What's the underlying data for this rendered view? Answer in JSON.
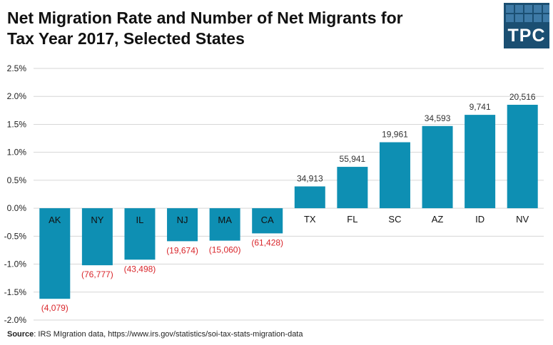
{
  "title_line1": "Net Migration Rate and Number of Net Migrants for",
  "title_line2": "Tax Year 2017, Selected States",
  "logo_text": "TPC",
  "source_label": "Source",
  "source_text": ": IRS MIgration data, https://www.irs.gov/statistics/soi-tax-stats-migration-data",
  "colors": {
    "bar": "#0e8fb3",
    "negative_label": "#d9262b",
    "positive_label": "#333333",
    "grid": "#d6d6d6",
    "logo_bg": "#1b4f72"
  },
  "chart_data": {
    "type": "bar",
    "title": "Net Migration Rate and Number of Net Migrants for Tax Year 2017, Selected States",
    "categories": [
      "AK",
      "NY",
      "IL",
      "NJ",
      "MA",
      "CA",
      "TX",
      "FL",
      "SC",
      "AZ",
      "ID",
      "NV"
    ],
    "values": [
      -1.62,
      -1.02,
      -0.92,
      -0.59,
      -0.58,
      -0.45,
      0.39,
      0.74,
      1.18,
      1.47,
      1.67,
      1.85
    ],
    "data_labels": [
      "(4,079)",
      "(76,777)",
      "(43,498)",
      "(19,674)",
      "(15,060)",
      "(61,428)",
      "34,913",
      "55,941",
      "19,961",
      "34,593",
      "9,741",
      "20,516"
    ],
    "ylim": [
      -2.0,
      2.5
    ],
    "yticks": [
      -2.0,
      -1.5,
      -1.0,
      -0.5,
      0.0,
      0.5,
      1.0,
      1.5,
      2.0,
      2.5
    ],
    "ytick_labels": [
      "-2.0%",
      "-1.5%",
      "-1.0%",
      "-0.5%",
      "0.0%",
      "0.5%",
      "1.0%",
      "1.5%",
      "2.0%",
      "2.5%"
    ],
    "grid": true,
    "legend": "none"
  }
}
